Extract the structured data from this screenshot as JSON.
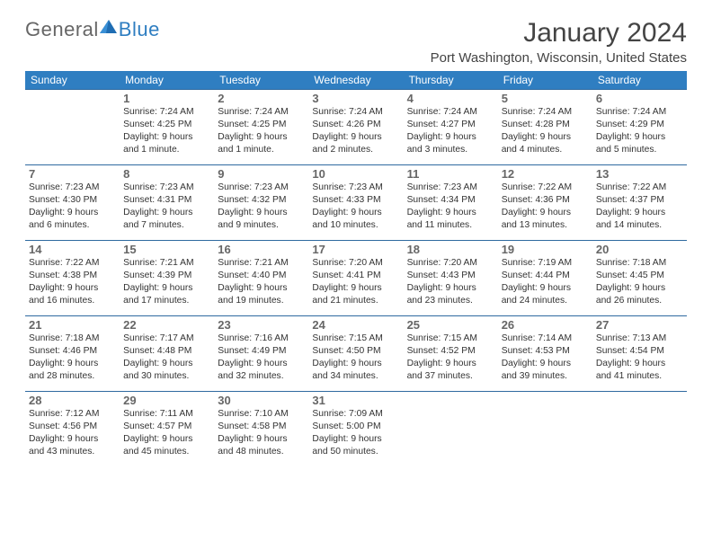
{
  "brand": {
    "part1": "General",
    "part2": "Blue"
  },
  "title": "January 2024",
  "location": "Port Washington, Wisconsin, United States",
  "colors": {
    "header_bg": "#2f7ec1",
    "header_text": "#ffffff",
    "cell_border": "#2f6aa0",
    "text": "#333333",
    "daynum": "#666666",
    "brand_gray": "#666666",
    "brand_blue": "#2f7ec1",
    "page_bg": "#ffffff"
  },
  "weekdays": [
    "Sunday",
    "Monday",
    "Tuesday",
    "Wednesday",
    "Thursday",
    "Friday",
    "Saturday"
  ],
  "weeks": [
    [
      null,
      {
        "d": "1",
        "sr": "Sunrise: 7:24 AM",
        "ss": "Sunset: 4:25 PM",
        "dl1": "Daylight: 9 hours",
        "dl2": "and 1 minute."
      },
      {
        "d": "2",
        "sr": "Sunrise: 7:24 AM",
        "ss": "Sunset: 4:25 PM",
        "dl1": "Daylight: 9 hours",
        "dl2": "and 1 minute."
      },
      {
        "d": "3",
        "sr": "Sunrise: 7:24 AM",
        "ss": "Sunset: 4:26 PM",
        "dl1": "Daylight: 9 hours",
        "dl2": "and 2 minutes."
      },
      {
        "d": "4",
        "sr": "Sunrise: 7:24 AM",
        "ss": "Sunset: 4:27 PM",
        "dl1": "Daylight: 9 hours",
        "dl2": "and 3 minutes."
      },
      {
        "d": "5",
        "sr": "Sunrise: 7:24 AM",
        "ss": "Sunset: 4:28 PM",
        "dl1": "Daylight: 9 hours",
        "dl2": "and 4 minutes."
      },
      {
        "d": "6",
        "sr": "Sunrise: 7:24 AM",
        "ss": "Sunset: 4:29 PM",
        "dl1": "Daylight: 9 hours",
        "dl2": "and 5 minutes."
      }
    ],
    [
      {
        "d": "7",
        "sr": "Sunrise: 7:23 AM",
        "ss": "Sunset: 4:30 PM",
        "dl1": "Daylight: 9 hours",
        "dl2": "and 6 minutes."
      },
      {
        "d": "8",
        "sr": "Sunrise: 7:23 AM",
        "ss": "Sunset: 4:31 PM",
        "dl1": "Daylight: 9 hours",
        "dl2": "and 7 minutes."
      },
      {
        "d": "9",
        "sr": "Sunrise: 7:23 AM",
        "ss": "Sunset: 4:32 PM",
        "dl1": "Daylight: 9 hours",
        "dl2": "and 9 minutes."
      },
      {
        "d": "10",
        "sr": "Sunrise: 7:23 AM",
        "ss": "Sunset: 4:33 PM",
        "dl1": "Daylight: 9 hours",
        "dl2": "and 10 minutes."
      },
      {
        "d": "11",
        "sr": "Sunrise: 7:23 AM",
        "ss": "Sunset: 4:34 PM",
        "dl1": "Daylight: 9 hours",
        "dl2": "and 11 minutes."
      },
      {
        "d": "12",
        "sr": "Sunrise: 7:22 AM",
        "ss": "Sunset: 4:36 PM",
        "dl1": "Daylight: 9 hours",
        "dl2": "and 13 minutes."
      },
      {
        "d": "13",
        "sr": "Sunrise: 7:22 AM",
        "ss": "Sunset: 4:37 PM",
        "dl1": "Daylight: 9 hours",
        "dl2": "and 14 minutes."
      }
    ],
    [
      {
        "d": "14",
        "sr": "Sunrise: 7:22 AM",
        "ss": "Sunset: 4:38 PM",
        "dl1": "Daylight: 9 hours",
        "dl2": "and 16 minutes."
      },
      {
        "d": "15",
        "sr": "Sunrise: 7:21 AM",
        "ss": "Sunset: 4:39 PM",
        "dl1": "Daylight: 9 hours",
        "dl2": "and 17 minutes."
      },
      {
        "d": "16",
        "sr": "Sunrise: 7:21 AM",
        "ss": "Sunset: 4:40 PM",
        "dl1": "Daylight: 9 hours",
        "dl2": "and 19 minutes."
      },
      {
        "d": "17",
        "sr": "Sunrise: 7:20 AM",
        "ss": "Sunset: 4:41 PM",
        "dl1": "Daylight: 9 hours",
        "dl2": "and 21 minutes."
      },
      {
        "d": "18",
        "sr": "Sunrise: 7:20 AM",
        "ss": "Sunset: 4:43 PM",
        "dl1": "Daylight: 9 hours",
        "dl2": "and 23 minutes."
      },
      {
        "d": "19",
        "sr": "Sunrise: 7:19 AM",
        "ss": "Sunset: 4:44 PM",
        "dl1": "Daylight: 9 hours",
        "dl2": "and 24 minutes."
      },
      {
        "d": "20",
        "sr": "Sunrise: 7:18 AM",
        "ss": "Sunset: 4:45 PM",
        "dl1": "Daylight: 9 hours",
        "dl2": "and 26 minutes."
      }
    ],
    [
      {
        "d": "21",
        "sr": "Sunrise: 7:18 AM",
        "ss": "Sunset: 4:46 PM",
        "dl1": "Daylight: 9 hours",
        "dl2": "and 28 minutes."
      },
      {
        "d": "22",
        "sr": "Sunrise: 7:17 AM",
        "ss": "Sunset: 4:48 PM",
        "dl1": "Daylight: 9 hours",
        "dl2": "and 30 minutes."
      },
      {
        "d": "23",
        "sr": "Sunrise: 7:16 AM",
        "ss": "Sunset: 4:49 PM",
        "dl1": "Daylight: 9 hours",
        "dl2": "and 32 minutes."
      },
      {
        "d": "24",
        "sr": "Sunrise: 7:15 AM",
        "ss": "Sunset: 4:50 PM",
        "dl1": "Daylight: 9 hours",
        "dl2": "and 34 minutes."
      },
      {
        "d": "25",
        "sr": "Sunrise: 7:15 AM",
        "ss": "Sunset: 4:52 PM",
        "dl1": "Daylight: 9 hours",
        "dl2": "and 37 minutes."
      },
      {
        "d": "26",
        "sr": "Sunrise: 7:14 AM",
        "ss": "Sunset: 4:53 PM",
        "dl1": "Daylight: 9 hours",
        "dl2": "and 39 minutes."
      },
      {
        "d": "27",
        "sr": "Sunrise: 7:13 AM",
        "ss": "Sunset: 4:54 PM",
        "dl1": "Daylight: 9 hours",
        "dl2": "and 41 minutes."
      }
    ],
    [
      {
        "d": "28",
        "sr": "Sunrise: 7:12 AM",
        "ss": "Sunset: 4:56 PM",
        "dl1": "Daylight: 9 hours",
        "dl2": "and 43 minutes."
      },
      {
        "d": "29",
        "sr": "Sunrise: 7:11 AM",
        "ss": "Sunset: 4:57 PM",
        "dl1": "Daylight: 9 hours",
        "dl2": "and 45 minutes."
      },
      {
        "d": "30",
        "sr": "Sunrise: 7:10 AM",
        "ss": "Sunset: 4:58 PM",
        "dl1": "Daylight: 9 hours",
        "dl2": "and 48 minutes."
      },
      {
        "d": "31",
        "sr": "Sunrise: 7:09 AM",
        "ss": "Sunset: 5:00 PM",
        "dl1": "Daylight: 9 hours",
        "dl2": "and 50 minutes."
      },
      null,
      null,
      null
    ]
  ]
}
